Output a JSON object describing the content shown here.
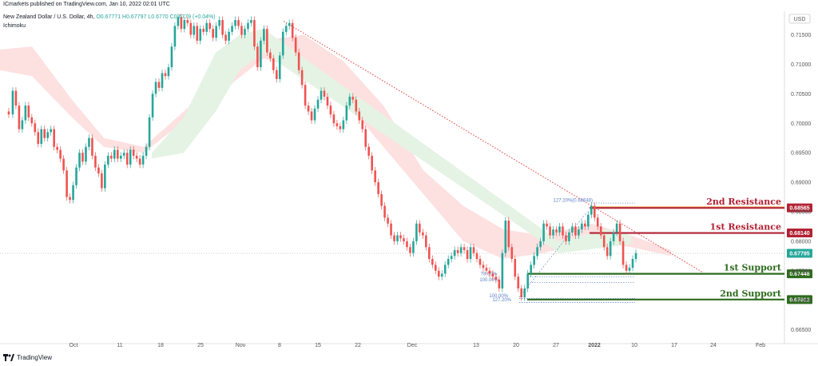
{
  "header": {
    "published": "ICmarkets published on TradingView.com, Jan 10, 2022 02:01 UTC",
    "symbol": "New Zealand Dollar / U.S. Dollar, 4h,",
    "ohlc": "O0.67771  H0.67797  L0.6770  C0.6779  (+0.04%)",
    "indicator": "Ichimoku"
  },
  "footer": {
    "brand": "TradingView"
  },
  "currency": "USD",
  "colors": {
    "up": "#26a69a",
    "down": "#ef5350",
    "resistance": "#b22234",
    "support": "#2e6b1e",
    "cloud_bear": "#fde0e0",
    "cloud_bull": "#e4f3e4",
    "trendline": "#e23b3b",
    "fib": "#5b7fc7"
  },
  "chart_data": {
    "type": "candlestick",
    "x_ticks": [
      "Oct",
      "11",
      "18",
      "25",
      "Nov",
      "8",
      "15",
      "22",
      "Dec",
      "13",
      "20",
      "27",
      "2022",
      "10",
      "17",
      "24",
      "Feb"
    ],
    "y_ticks": [
      "0.71500",
      "0.71000",
      "0.70500",
      "0.70000",
      "0.69500",
      "0.69000",
      "0.68500",
      "0.68000",
      "0.67500",
      "0.67000",
      "0.66500"
    ],
    "ylim": [
      0.664,
      0.719
    ],
    "current_price": 0.67795,
    "close_path": [
      [
        0,
        0.702
      ],
      [
        5,
        0.7015
      ],
      [
        10,
        0.7055
      ],
      [
        14,
        0.703
      ],
      [
        18,
        0.699
      ],
      [
        22,
        0.7005
      ],
      [
        26,
        0.703
      ],
      [
        30,
        0.701
      ],
      [
        34,
        0.7
      ],
      [
        38,
        0.6985
      ],
      [
        42,
        0.6965
      ],
      [
        46,
        0.699
      ],
      [
        50,
        0.6975
      ],
      [
        54,
        0.6985
      ],
      [
        58,
        0.699
      ],
      [
        62,
        0.696
      ],
      [
        66,
        0.6955
      ],
      [
        70,
        0.694
      ],
      [
        74,
        0.692
      ],
      [
        78,
        0.6875
      ],
      [
        82,
        0.687
      ],
      [
        86,
        0.6895
      ],
      [
        90,
        0.6925
      ],
      [
        94,
        0.695
      ],
      [
        98,
        0.6935
      ],
      [
        102,
        0.696
      ],
      [
        106,
        0.6975
      ],
      [
        110,
        0.6945
      ],
      [
        114,
        0.6925
      ],
      [
        118,
        0.6915
      ],
      [
        122,
        0.689
      ],
      [
        126,
        0.693
      ],
      [
        130,
        0.6945
      ],
      [
        134,
        0.694
      ],
      [
        138,
        0.6955
      ],
      [
        142,
        0.694
      ],
      [
        146,
        0.6945
      ],
      [
        150,
        0.695
      ],
      [
        154,
        0.693
      ],
      [
        158,
        0.6955
      ],
      [
        162,
        0.6945
      ],
      [
        166,
        0.694
      ],
      [
        170,
        0.693
      ],
      [
        174,
        0.6945
      ],
      [
        178,
        0.696
      ],
      [
        182,
        0.701
      ],
      [
        186,
        0.705
      ],
      [
        190,
        0.707
      ],
      [
        194,
        0.706
      ],
      [
        198,
        0.7085
      ],
      [
        202,
        0.708
      ],
      [
        206,
        0.7095
      ],
      [
        210,
        0.713
      ],
      [
        214,
        0.7165
      ],
      [
        218,
        0.718
      ],
      [
        222,
        0.716
      ],
      [
        226,
        0.7175
      ],
      [
        230,
        0.717
      ],
      [
        234,
        0.715
      ],
      [
        238,
        0.7165
      ],
      [
        242,
        0.714
      ],
      [
        246,
        0.716
      ],
      [
        250,
        0.7155
      ],
      [
        254,
        0.717
      ],
      [
        258,
        0.716
      ],
      [
        262,
        0.7145
      ],
      [
        266,
        0.7165
      ],
      [
        270,
        0.7175
      ],
      [
        274,
        0.715
      ],
      [
        278,
        0.714
      ],
      [
        282,
        0.7155
      ],
      [
        286,
        0.7165
      ],
      [
        290,
        0.7175
      ],
      [
        294,
        0.7165
      ],
      [
        298,
        0.715
      ],
      [
        302,
        0.716
      ],
      [
        306,
        0.717
      ],
      [
        310,
        0.7175
      ],
      [
        314,
        0.713
      ],
      [
        318,
        0.7095
      ],
      [
        322,
        0.714
      ],
      [
        326,
        0.716
      ],
      [
        330,
        0.712
      ],
      [
        334,
        0.711
      ],
      [
        338,
        0.709
      ],
      [
        342,
        0.7075
      ],
      [
        346,
        0.7115
      ],
      [
        350,
        0.7155
      ],
      [
        354,
        0.7165
      ],
      [
        358,
        0.717
      ],
      [
        362,
        0.7145
      ],
      [
        366,
        0.712
      ],
      [
        370,
        0.709
      ],
      [
        374,
        0.7065
      ],
      [
        378,
        0.703
      ],
      [
        382,
        0.702
      ],
      [
        386,
        0.7005
      ],
      [
        390,
        0.7025
      ],
      [
        394,
        0.704
      ],
      [
        398,
        0.7055
      ],
      [
        402,
        0.7045
      ],
      [
        406,
        0.703
      ],
      [
        410,
        0.7015
      ],
      [
        414,
        0.7
      ],
      [
        418,
        0.6995
      ],
      [
        422,
        0.699
      ],
      [
        426,
        0.7005
      ],
      [
        430,
        0.703
      ],
      [
        434,
        0.7045
      ],
      [
        438,
        0.704
      ],
      [
        442,
        0.702
      ],
      [
        446,
        0.7005
      ],
      [
        450,
        0.699
      ],
      [
        454,
        0.696
      ],
      [
        458,
        0.6945
      ],
      [
        462,
        0.692
      ],
      [
        466,
        0.69
      ],
      [
        470,
        0.688
      ],
      [
        474,
        0.686
      ],
      [
        478,
        0.684
      ],
      [
        482,
        0.683
      ],
      [
        486,
        0.681
      ],
      [
        490,
        0.68
      ],
      [
        494,
        0.681
      ],
      [
        498,
        0.6805
      ],
      [
        502,
        0.68
      ],
      [
        506,
        0.679
      ],
      [
        510,
        0.678
      ],
      [
        514,
        0.68
      ],
      [
        518,
        0.683
      ],
      [
        522,
        0.6815
      ],
      [
        526,
        0.681
      ],
      [
        530,
        0.679
      ],
      [
        534,
        0.677
      ],
      [
        538,
        0.676
      ],
      [
        542,
        0.675
      ],
      [
        546,
        0.674
      ],
      [
        550,
        0.6745
      ],
      [
        554,
        0.676
      ],
      [
        558,
        0.677
      ],
      [
        562,
        0.6775
      ],
      [
        566,
        0.6785
      ],
      [
        570,
        0.678
      ],
      [
        574,
        0.679
      ],
      [
        578,
        0.6785
      ],
      [
        582,
        0.677
      ],
      [
        586,
        0.679
      ],
      [
        590,
        0.678
      ],
      [
        594,
        0.677
      ],
      [
        598,
        0.676
      ],
      [
        602,
        0.6755
      ],
      [
        606,
        0.675
      ],
      [
        610,
        0.6745
      ],
      [
        614,
        0.674
      ],
      [
        618,
        0.6735
      ],
      [
        622,
        0.672
      ],
      [
        626,
        0.678
      ],
      [
        630,
        0.6835
      ],
      [
        634,
        0.679
      ],
      [
        638,
        0.677
      ],
      [
        642,
        0.674
      ],
      [
        646,
        0.672
      ],
      [
        650,
        0.6705
      ],
      [
        654,
        0.672
      ],
      [
        658,
        0.6745
      ],
      [
        662,
        0.676
      ],
      [
        666,
        0.6775
      ],
      [
        670,
        0.679
      ],
      [
        674,
        0.68
      ],
      [
        678,
        0.683
      ],
      [
        682,
        0.6825
      ],
      [
        686,
        0.681
      ],
      [
        690,
        0.682
      ],
      [
        694,
        0.6815
      ],
      [
        698,
        0.6825
      ],
      [
        702,
        0.681
      ],
      [
        706,
        0.68
      ],
      [
        710,
        0.6815
      ],
      [
        714,
        0.6825
      ],
      [
        718,
        0.681
      ],
      [
        722,
        0.682
      ],
      [
        726,
        0.683
      ],
      [
        730,
        0.6825
      ],
      [
        734,
        0.6845
      ],
      [
        738,
        0.686
      ],
      [
        742,
        0.684
      ],
      [
        746,
        0.6825
      ],
      [
        750,
        0.681
      ],
      [
        754,
        0.679
      ],
      [
        758,
        0.6775
      ],
      [
        762,
        0.68
      ],
      [
        766,
        0.6815
      ],
      [
        770,
        0.683
      ],
      [
        774,
        0.68
      ],
      [
        778,
        0.676
      ],
      [
        782,
        0.675
      ],
      [
        786,
        0.6755
      ],
      [
        790,
        0.677
      ],
      [
        794,
        0.678
      ]
    ],
    "ichimoku_cloud": {
      "bearish": [
        [
          0,
          0.7125,
          0.709
        ],
        [
          40,
          0.713,
          0.708
        ],
        [
          90,
          0.704,
          0.701
        ],
        [
          130,
          0.6975,
          0.696
        ],
        [
          180,
          0.696,
          0.695
        ],
        [
          330,
          0.714,
          0.711
        ],
        [
          380,
          0.715,
          0.709
        ],
        [
          430,
          0.7105,
          0.704
        ],
        [
          480,
          0.703,
          0.696
        ],
        [
          530,
          0.692,
          0.688
        ],
        [
          580,
          0.686,
          0.68
        ],
        [
          630,
          0.682,
          0.677
        ],
        [
          680,
          0.681,
          0.678
        ],
        [
          740,
          0.683,
          0.68
        ],
        [
          790,
          0.681,
          0.679
        ],
        [
          840,
          0.6785,
          0.6775
        ]
      ],
      "bullish": [
        [
          190,
          0.695,
          0.694
        ],
        [
          230,
          0.701,
          0.695
        ],
        [
          270,
          0.712,
          0.702
        ],
        [
          300,
          0.715,
          0.709
        ],
        [
          330,
          0.716,
          0.712
        ],
        [
          700,
          0.68,
          0.678
        ],
        [
          760,
          0.682,
          0.679
        ],
        [
          790,
          0.681,
          0.6795
        ]
      ]
    },
    "levels": [
      {
        "name": "2nd Resistance",
        "price": 0.68565,
        "price_label": "0.68565",
        "kind": "resistance"
      },
      {
        "name": "1st Resistance",
        "price": 0.6814,
        "price_label": "0.68140",
        "kind": "resistance"
      },
      {
        "name": "1st Support",
        "price": 0.67448,
        "price_label": "0.67448",
        "kind": "support"
      },
      {
        "name": "2nd Support",
        "price": 0.67012,
        "price_label": "0.67012",
        "kind": "support"
      }
    ],
    "fib_labels": [
      {
        "text": "127.20%(0.68648)",
        "price": 0.68648
      },
      {
        "text": "78.60%",
        "price": 0.674
      },
      {
        "text": "100.00%",
        "price": 0.673
      },
      {
        "text": "100.00%",
        "price": 0.6703
      },
      {
        "text": "127.20%",
        "price": 0.6696
      }
    ],
    "trendline": [
      [
        355,
        0.7173
      ],
      [
        880,
        0.6747
      ]
    ]
  }
}
